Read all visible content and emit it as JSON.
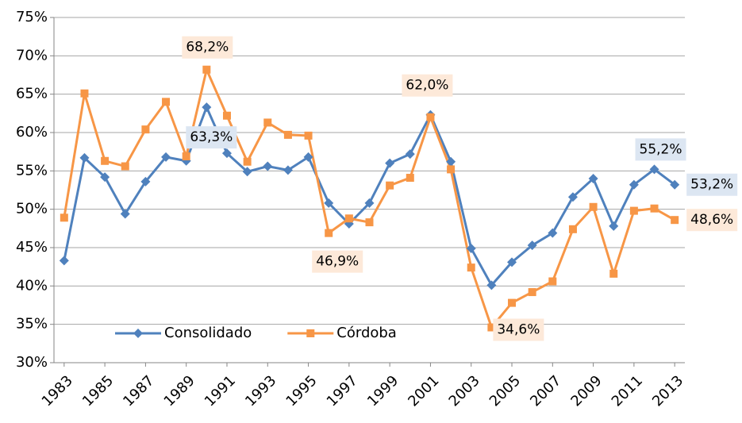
{
  "chart_data": {
    "type": "line",
    "x": [
      1983,
      1984,
      1985,
      1986,
      1987,
      1988,
      1989,
      1990,
      1991,
      1992,
      1993,
      1994,
      1995,
      1996,
      1997,
      1998,
      1999,
      2000,
      2001,
      2002,
      2003,
      2004,
      2005,
      2006,
      2007,
      2008,
      2009,
      2010,
      2011,
      2012,
      2013
    ],
    "xlim": [
      1982.5,
      2013.5
    ],
    "xticks": [
      1983,
      1985,
      1987,
      1989,
      1991,
      1993,
      1995,
      1997,
      1999,
      2001,
      2003,
      2005,
      2007,
      2009,
      2011,
      2013
    ],
    "ylim": [
      30,
      75
    ],
    "yticks": [
      {
        "value": 30,
        "label": "30%"
      },
      {
        "value": 35,
        "label": "35%"
      },
      {
        "value": 40,
        "label": "40%"
      },
      {
        "value": 45,
        "label": "45%"
      },
      {
        "value": 50,
        "label": "50%"
      },
      {
        "value": 55,
        "label": "55%"
      },
      {
        "value": 60,
        "label": "60%"
      },
      {
        "value": 65,
        "label": "65%"
      },
      {
        "value": 70,
        "label": "70%"
      },
      {
        "value": 75,
        "label": "75%"
      }
    ],
    "grid": true,
    "legend": "lower left",
    "series": [
      {
        "name": "Consolidado",
        "color": "#4f81bd",
        "marker": "diamond",
        "label_background": "#dce6f2",
        "values": [
          43.3,
          56.7,
          54.2,
          49.4,
          53.6,
          56.8,
          56.3,
          63.3,
          57.3,
          54.9,
          55.6,
          55.1,
          56.8,
          50.8,
          48.1,
          50.8,
          56.0,
          57.2,
          62.3,
          56.2,
          44.9,
          40.1,
          43.1,
          45.3,
          46.9,
          51.6,
          54.0,
          47.8,
          53.2,
          55.2,
          53.2
        ],
        "value_labels": [
          null,
          null,
          null,
          null,
          null,
          null,
          null,
          "63,3%",
          null,
          null,
          null,
          null,
          null,
          null,
          null,
          null,
          null,
          null,
          null,
          null,
          null,
          null,
          null,
          null,
          null,
          null,
          null,
          null,
          null,
          "55,2%",
          "53,2%"
        ]
      },
      {
        "name": "Córdoba",
        "color": "#f79646",
        "marker": "square",
        "label_background": "#fde9d9",
        "values": [
          48.9,
          65.1,
          56.3,
          55.6,
          60.4,
          64.0,
          56.9,
          68.2,
          62.2,
          56.2,
          61.3,
          59.7,
          59.6,
          46.9,
          48.8,
          48.3,
          53.1,
          54.1,
          62.0,
          55.2,
          42.4,
          34.6,
          37.8,
          39.2,
          40.6,
          47.4,
          50.3,
          41.6,
          49.8,
          50.1,
          48.6
        ],
        "value_labels": [
          null,
          null,
          null,
          null,
          null,
          null,
          null,
          "68,2%",
          null,
          null,
          null,
          null,
          null,
          "46,9%",
          null,
          null,
          null,
          null,
          "62,0%",
          null,
          null,
          "34,6%",
          null,
          null,
          null,
          null,
          null,
          null,
          null,
          null,
          "48,6%"
        ]
      }
    ]
  }
}
